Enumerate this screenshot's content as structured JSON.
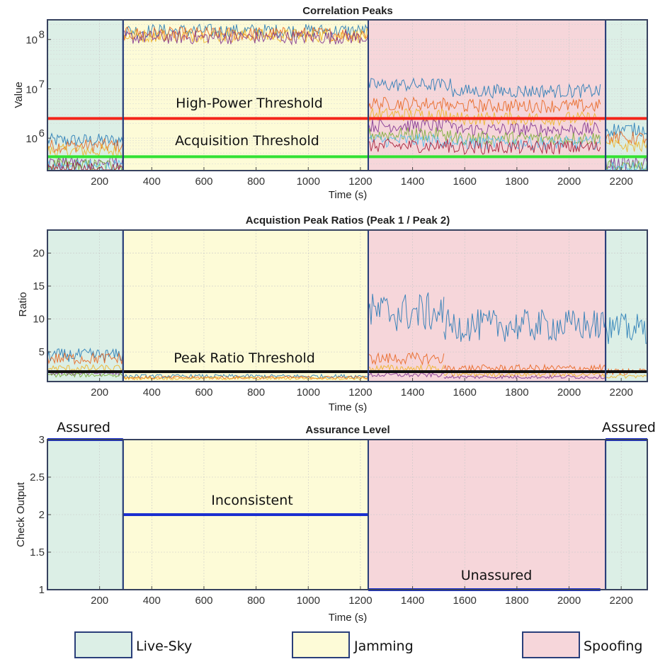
{
  "colors": {
    "live_sky": "#dcefe6",
    "jamming": "#fdfbd7",
    "spoofing": "#f6d6da",
    "frame": "#2a3f7a",
    "high_power": "#f4261a",
    "acquisition": "#33e233",
    "peak_ratio": "#111111",
    "assurance_line": "#1a2fd0",
    "series": [
      "#1f77b4",
      "#e8611a",
      "#edb120",
      "#7e2f8e",
      "#77ac30",
      "#4dbeee",
      "#a2142f"
    ]
  },
  "legend": {
    "items": [
      {
        "label": "Live-Sky",
        "color": "#dcefe6"
      },
      {
        "label": "Jamming",
        "color": "#fdfbd7"
      },
      {
        "label": "Spoofing",
        "color": "#f6d6da"
      }
    ]
  },
  "chart_data": [
    {
      "type": "line",
      "title": "Correlation Peaks",
      "xlabel": "Time (s)",
      "ylabel": "Value",
      "yscale": "log",
      "xlim": [
        0,
        2300
      ],
      "ylim": [
        220000,
        250000000
      ],
      "xticks": [
        200,
        400,
        600,
        800,
        1000,
        1200,
        1400,
        1600,
        1800,
        2000,
        2200
      ],
      "yticks": [
        {
          "value": 1000000,
          "label": "10^6"
        },
        {
          "value": 10000000,
          "label": "10^7"
        },
        {
          "value": 100000000,
          "label": "10^8"
        }
      ],
      "grid": true,
      "regions": [
        {
          "name": "Live-Sky",
          "x": [
            0,
            290
          ]
        },
        {
          "name": "Jamming",
          "x": [
            290,
            1230
          ]
        },
        {
          "name": "Spoofing",
          "x": [
            1230,
            2140
          ]
        },
        {
          "name": "Live-Sky",
          "x": [
            2140,
            2300
          ]
        }
      ],
      "thresholds": [
        {
          "label": "High-Power Threshold",
          "value": 2500000,
          "color": "#f4261a"
        },
        {
          "label": "Acquisition Threshold",
          "value": 420000,
          "color": "#33e233"
        }
      ],
      "series_levels": [
        {
          "x": [
            0,
            290
          ],
          "levels": [
            900000,
            700000,
            550000,
            320000,
            280000,
            260000,
            240000
          ]
        },
        {
          "x": [
            290,
            1230
          ],
          "levels": [
            150000000,
            130000000,
            120000000,
            110000000
          ]
        },
        {
          "x": [
            1230,
            1550
          ],
          "levels": [
            12000000,
            5000000,
            3000000,
            1800000,
            1200000,
            900000,
            700000
          ]
        },
        {
          "x": [
            1550,
            2120
          ],
          "levels": [
            9000000,
            4500000,
            2500000,
            1500000,
            1000000,
            800000,
            650000
          ]
        },
        {
          "x": [
            2140,
            2300
          ],
          "levels": [
            1500000,
            1000000,
            700000,
            300000,
            260000,
            240000
          ]
        }
      ]
    },
    {
      "type": "line",
      "title": "Acquistion Peak Ratios (Peak 1 / Peak 2)",
      "xlabel": "Time (s)",
      "ylabel": "Ratio",
      "xlim": [
        0,
        2300
      ],
      "ylim": [
        0.5,
        23.5
      ],
      "xticks": [
        200,
        400,
        600,
        800,
        1000,
        1200,
        1400,
        1600,
        1800,
        2000,
        2200
      ],
      "yticks": [
        5,
        10,
        15,
        20
      ],
      "grid": true,
      "regions": [
        {
          "name": "Live-Sky",
          "x": [
            0,
            290
          ]
        },
        {
          "name": "Jamming",
          "x": [
            290,
            1230
          ]
        },
        {
          "name": "Spoofing",
          "x": [
            1230,
            2140
          ]
        },
        {
          "name": "Live-Sky",
          "x": [
            2140,
            2300
          ]
        }
      ],
      "thresholds": [
        {
          "label": "Peak Ratio Threshold",
          "value": 2,
          "color": "#111111"
        }
      ],
      "series_levels": [
        {
          "x": [
            0,
            290
          ],
          "levels": [
            4.5,
            4.0,
            2.5,
            1.8,
            1.5
          ]
        },
        {
          "x": [
            290,
            1230
          ],
          "levels": [
            1.3,
            1.1,
            1.0
          ]
        },
        {
          "x": [
            1230,
            1520
          ],
          "levels": [
            11,
            4,
            2.5,
            1.5
          ]
        },
        {
          "x": [
            1520,
            2140
          ],
          "levels": [
            9,
            2.5,
            1.6,
            1.2
          ]
        },
        {
          "x": [
            2140,
            2300
          ],
          "levels": [
            8.5,
            2,
            1.3
          ]
        }
      ]
    },
    {
      "type": "line",
      "title": "Assurance Level",
      "xlabel": "Time (s)",
      "ylabel": "Check Output",
      "xlim": [
        0,
        2300
      ],
      "ylim": [
        1,
        3
      ],
      "xticks": [
        200,
        400,
        600,
        800,
        1000,
        1200,
        1400,
        1600,
        1800,
        2000,
        2200
      ],
      "yticks": [
        1,
        1.5,
        2,
        2.5,
        3
      ],
      "grid": true,
      "regions": [
        {
          "name": "Live-Sky",
          "x": [
            0,
            290
          ]
        },
        {
          "name": "Jamming",
          "x": [
            290,
            1230
          ]
        },
        {
          "name": "Spoofing",
          "x": [
            1230,
            2140
          ]
        },
        {
          "name": "Live-Sky",
          "x": [
            2140,
            2300
          ]
        }
      ],
      "segments": [
        {
          "x": [
            0,
            290
          ],
          "y": 3
        },
        {
          "x": [
            290,
            1230
          ],
          "y": 2
        },
        {
          "x": [
            1230,
            2120
          ],
          "y": 1
        },
        {
          "x": [
            2140,
            2300
          ],
          "y": 3
        }
      ],
      "annotations": [
        {
          "text": "Assured"
        },
        {
          "text": "Inconsistent"
        },
        {
          "text": "Unassured"
        },
        {
          "text": "Assured"
        }
      ]
    }
  ]
}
